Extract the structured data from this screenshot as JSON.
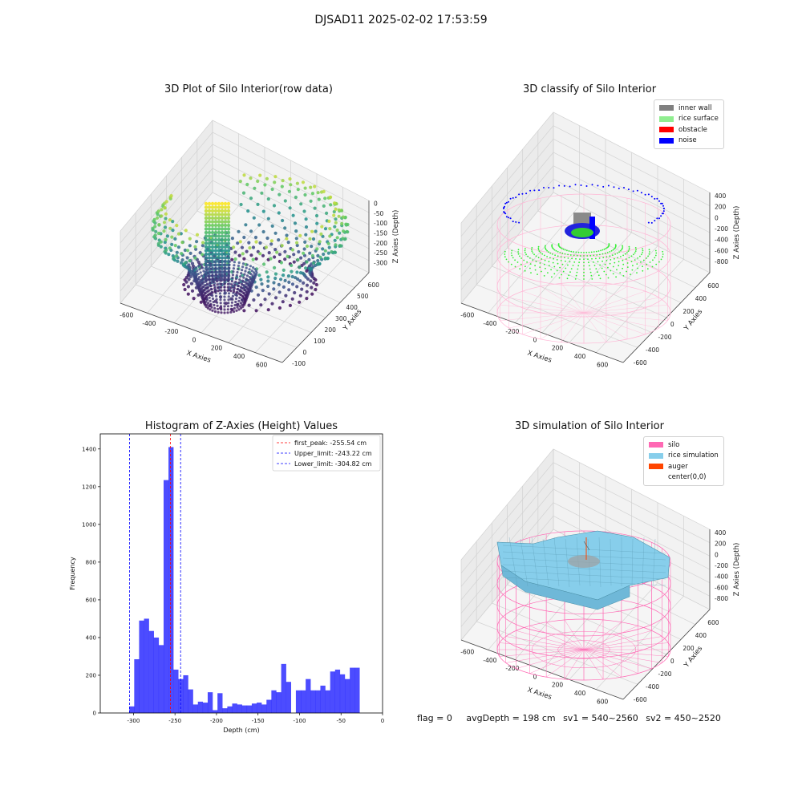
{
  "figure": {
    "suptitle": "DJSAD11 2025-02-02 17:53:59"
  },
  "panel1": {
    "title": "3D Plot of Silo Interior(row data)",
    "xlabel": "X Axies",
    "ylabel": "Y Axies",
    "zlabel": "Z Axies (Depth)",
    "xticks": [
      "-600",
      "-400",
      "-200",
      "0",
      "200",
      "400",
      "600"
    ],
    "yticks": [
      "-100",
      "0",
      "100",
      "200",
      "300",
      "400",
      "500",
      "600"
    ],
    "zticks": [
      "0",
      "-50",
      "-100",
      "-150",
      "-200",
      "-250",
      "-300"
    ]
  },
  "panel2": {
    "title": "3D classify of Silo Interior",
    "xlabel": "X Axies",
    "ylabel": "Y Axies",
    "zlabel": "Z Axies (Depth)",
    "xticks": [
      "-600",
      "-400",
      "-200",
      "0",
      "200",
      "400",
      "600"
    ],
    "yticks": [
      "-600",
      "-400",
      "-200",
      "0",
      "200",
      "400",
      "600"
    ],
    "zticks": [
      "400",
      "200",
      "0",
      "-200",
      "-400",
      "-600",
      "-800"
    ],
    "legend": [
      {
        "label": "inner wall",
        "color": "#808080"
      },
      {
        "label": "rice surface",
        "color": "#90ee90"
      },
      {
        "label": "obstacle",
        "color": "#ff0000"
      },
      {
        "label": "noise",
        "color": "#0000ff"
      }
    ]
  },
  "panel4": {
    "title": "3D simulation of Silo Interior",
    "xlabel": "X Axies",
    "ylabel": "Y Axies",
    "zlabel": "Z Axies (Depth)",
    "xticks": [
      "-600",
      "-400",
      "-200",
      "0",
      "200",
      "400",
      "600"
    ],
    "yticks": [
      "-600",
      "-400",
      "-200",
      "0",
      "200",
      "400",
      "600"
    ],
    "zticks": [
      "400",
      "200",
      "0",
      "-200",
      "-400",
      "-600",
      "-800"
    ],
    "legend": [
      {
        "label": "silo",
        "color": "#ff69b4"
      },
      {
        "label": "rice simulation",
        "color": "#87ceeb"
      },
      {
        "label": "auger",
        "color": "#ff4500"
      },
      {
        "label": "center(0,0)",
        "color": "#ffffff"
      }
    ]
  },
  "footer": {
    "flag": "flag = 0",
    "avg": "avgDepth = 198 cm",
    "sv1": "sv1 = 540~2560",
    "sv2": "sv2 = 450~2520"
  },
  "chart_data": [
    {
      "type": "scatter",
      "title": "3D Plot of Silo Interior(row data)",
      "xlabel": "X Axies",
      "ylabel": "Y Axies",
      "zlabel": "Z Axies (Depth)",
      "xlim": [
        -650,
        650
      ],
      "ylim": [
        -150,
        650
      ],
      "zlim": [
        -340,
        0
      ],
      "note": "3D scatter of raw silo interior points colored by depth (viridis)"
    },
    {
      "type": "scatter",
      "title": "3D classify of Silo Interior",
      "xlabel": "X Axies",
      "ylabel": "Y Axies",
      "zlabel": "Z Axies (Depth)",
      "xlim": [
        -650,
        650
      ],
      "ylim": [
        -650,
        650
      ],
      "zlim": [
        -900,
        450
      ],
      "series": [
        {
          "name": "inner wall",
          "color": "#808080"
        },
        {
          "name": "rice surface",
          "color": "#90ee90"
        },
        {
          "name": "obstacle",
          "color": "#ff0000"
        },
        {
          "name": "noise",
          "color": "#0000ff"
        }
      ]
    },
    {
      "type": "bar",
      "title": "Histogram of Z-Axies (Height) Values",
      "xlabel": "Depth (cm)",
      "ylabel": "Frequency",
      "xlim": [
        -340,
        0
      ],
      "ylim": [
        0,
        1480
      ],
      "xticks": [
        -300,
        -250,
        -200,
        -150,
        -100,
        -50,
        0
      ],
      "yticks": [
        0,
        200,
        400,
        600,
        800,
        1000,
        1200,
        1400
      ],
      "bin_start": -305,
      "bin_width": 5.9,
      "values": [
        35,
        285,
        490,
        500,
        435,
        400,
        360,
        1235,
        1410,
        230,
        180,
        200,
        125,
        45,
        60,
        55,
        110,
        15,
        105,
        25,
        35,
        50,
        45,
        40,
        40,
        50,
        55,
        45,
        70,
        120,
        110,
        260,
        165,
        0,
        120,
        120,
        180,
        120,
        120,
        145,
        120,
        220,
        230,
        205,
        180,
        240,
        240
      ],
      "lines": [
        {
          "label": "first_peak: -255.54 cm",
          "value": -255.54,
          "color": "#ff0000"
        },
        {
          "label": "Upper_limit: -243.22 cm",
          "value": -243.22,
          "color": "#0000ff"
        },
        {
          "label": "Lower_limit: -304.82 cm",
          "value": -304.82,
          "color": "#0000ff"
        }
      ]
    },
    {
      "type": "area",
      "title": "3D simulation of Silo Interior",
      "xlabel": "X Axies",
      "ylabel": "Y Axies",
      "zlabel": "Z Axies (Depth)",
      "xlim": [
        -650,
        650
      ],
      "ylim": [
        -650,
        650
      ],
      "zlim": [
        -900,
        450
      ],
      "series": [
        {
          "name": "silo",
          "color": "#ff69b4"
        },
        {
          "name": "rice simulation",
          "color": "#87ceeb"
        },
        {
          "name": "auger",
          "color": "#ff4500"
        },
        {
          "name": "center(0,0)",
          "color": "#ffffff"
        }
      ]
    }
  ]
}
